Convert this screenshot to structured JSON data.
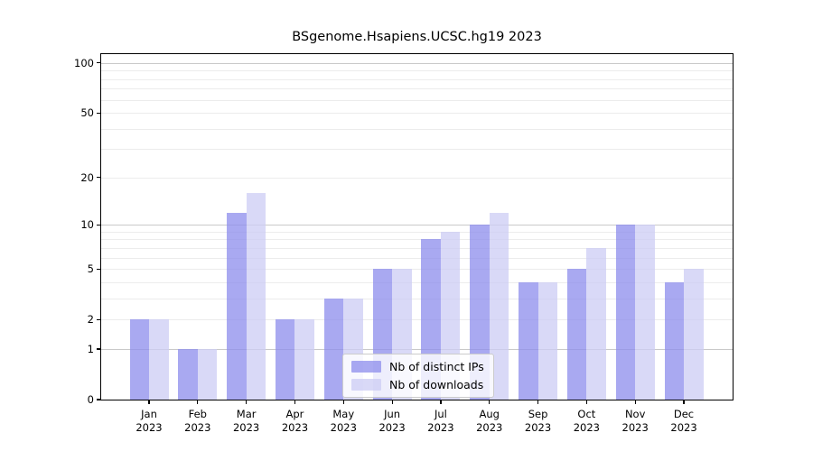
{
  "chart_data": {
    "type": "bar",
    "title": "BSgenome.Hsapiens.UCSC.hg19 2023",
    "categories": [
      "Jan",
      "Feb",
      "Mar",
      "Apr",
      "May",
      "Jun",
      "Jul",
      "Aug",
      "Sep",
      "Oct",
      "Nov",
      "Dec"
    ],
    "category_year": "2023",
    "series": [
      {
        "name": "Nb of distinct IPs",
        "color": "#a9a9f1",
        "fill": "rgba(140,140,236,0.75)",
        "values": [
          2,
          1,
          12,
          2,
          3,
          5,
          8,
          10,
          4,
          5,
          10,
          4
        ]
      },
      {
        "name": "Nb of downloads",
        "color": "#d9d9f7",
        "fill": "rgba(204,204,244,0.75)",
        "values": [
          2,
          1,
          16,
          2,
          3,
          5,
          9,
          12,
          4,
          7,
          10,
          5
        ]
      }
    ],
    "xlabel": "",
    "ylabel": "",
    "yscale": "log1p",
    "ylim": [
      0,
      100
    ],
    "y_ticks": [
      0,
      1,
      2,
      5,
      10,
      20,
      50,
      100
    ],
    "y_gridlines_major": [
      1,
      10,
      100
    ],
    "y_gridlines_minor": [
      2,
      3,
      4,
      5,
      6,
      7,
      8,
      9,
      20,
      30,
      40,
      50,
      60,
      70,
      80,
      90
    ],
    "grid": true,
    "legend_position": "lower-center-inside"
  },
  "colors": {
    "axis": "#000000",
    "grid_major": "#c9c9c9",
    "grid_minor": "#ececec",
    "legend_border": "#cccccc",
    "legend_background": "rgba(255,255,255,0.8)",
    "plot_background": "#ffffff"
  }
}
